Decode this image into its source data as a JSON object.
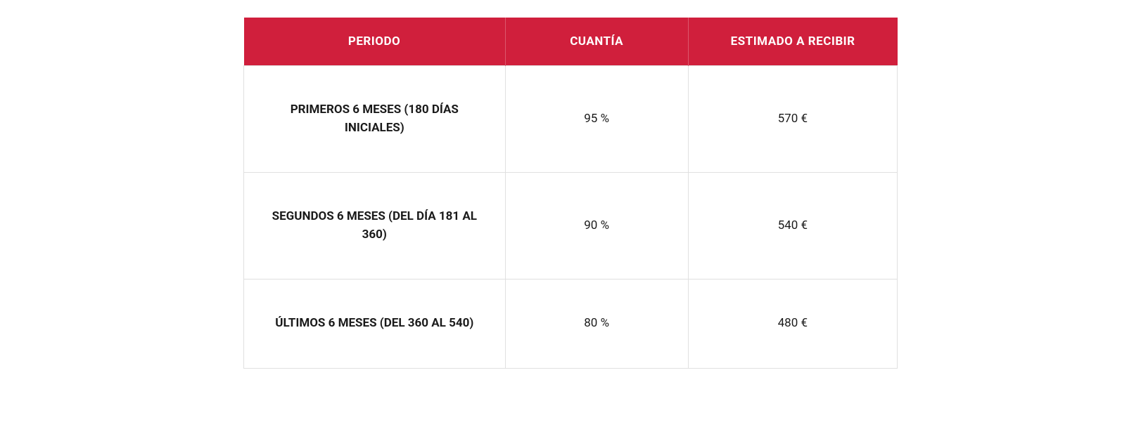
{
  "table": {
    "type": "table",
    "header_bg_color": "#d01f3c",
    "header_text_color": "#ffffff",
    "border_color": "#e0e0e0",
    "background_color": "#ffffff",
    "header_fontsize": 17,
    "body_fontsize": 17,
    "columns": [
      {
        "key": "periodo",
        "label": "PERIODO",
        "width": "40%",
        "align": "center",
        "bold": true
      },
      {
        "key": "cuantia",
        "label": "CUANTÍA",
        "width": "28%",
        "align": "center",
        "bold": false
      },
      {
        "key": "estimado",
        "label": "ESTIMADO A RECIBIR",
        "width": "32%",
        "align": "center",
        "bold": false
      }
    ],
    "rows": [
      {
        "periodo": "PRIMEROS 6 MESES (180 DÍAS INICIALES)",
        "cuantia": "95 %",
        "estimado": "570 €"
      },
      {
        "periodo": "SEGUNDOS 6 MESES (DEL DÍA 181 AL 360)",
        "cuantia": "90 %",
        "estimado": "540 €"
      },
      {
        "periodo": "ÚLTIMOS 6 MESES (DEL 360 AL 540)",
        "cuantia": "80 %",
        "estimado": "480 €"
      }
    ]
  }
}
